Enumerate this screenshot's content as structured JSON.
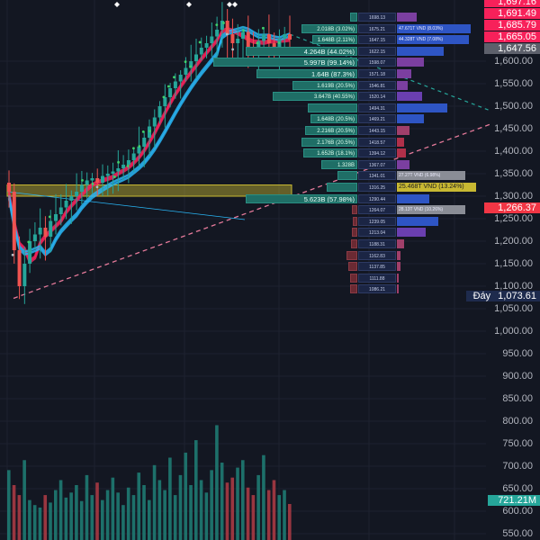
{
  "chart_data": {
    "type": "candlestick",
    "price_axis": {
      "ticks": [
        "1,600.00",
        "1,550.00",
        "1,500.00",
        "1,450.00",
        "1,400.00",
        "1,350.00",
        "1,300.00",
        "1,250.00",
        "1,200.00",
        "1,150.00",
        "1,100.00",
        "1,050.00",
        "1,000.00",
        "950.00",
        "900.00",
        "850.00",
        "800.00",
        "750.00",
        "700.00",
        "650.00",
        "600.00",
        "550.00"
      ],
      "tick_values": [
        1600,
        1550,
        1500,
        1450,
        1400,
        1350,
        1300,
        1250,
        1200,
        1150,
        1100,
        1050,
        1000,
        950,
        900,
        850,
        800,
        750,
        700,
        650,
        600,
        550
      ],
      "range": [
        530,
        1730
      ]
    },
    "price_tags": [
      {
        "label": "1,697.16",
        "style": "pink"
      },
      {
        "label": "1,691.49",
        "style": "pink"
      },
      {
        "label": "1,685.79",
        "style": "pink"
      },
      {
        "label": "1,665.05",
        "style": "pink"
      },
      {
        "label": "1,647.56",
        "style": "grey"
      },
      {
        "label": "1,266.37",
        "style": "red",
        "value": 1266.37
      },
      {
        "prefix": "Đáy",
        "label": "1,073.61",
        "style": "navy",
        "value": 1073.61
      }
    ],
    "closes": [
      1310,
      1180,
      1100,
      1150,
      1200,
      1215,
      1230,
      1210,
      1245,
      1260,
      1275,
      1290,
      1300,
      1310,
      1325,
      1335,
      1340,
      1330,
      1345,
      1350,
      1355,
      1362,
      1370,
      1380,
      1395,
      1410,
      1430,
      1455,
      1475,
      1500,
      1520,
      1540,
      1555,
      1570,
      1585,
      1600,
      1615,
      1630,
      1640,
      1655,
      1670,
      1690,
      1660,
      1640,
      1650,
      1665,
      1630,
      1620,
      1645,
      1660,
      1640,
      1625,
      1650,
      1660,
      1648
    ],
    "volume_label": "721.21M",
    "volume_m": [
      1400,
      1100,
      900,
      1600,
      800,
      700,
      650,
      900,
      750,
      1000,
      1200,
      850,
      950,
      1100,
      780,
      1300,
      900,
      1150,
      800,
      1000,
      1250,
      950,
      700,
      1050,
      900,
      1350,
      1100,
      800,
      1500,
      1200,
      1000,
      1650,
      900,
      1300,
      1750,
      1100,
      2000,
      1200,
      950,
      1400,
      2300,
      1550,
      1150,
      1250,
      1450,
      1600,
      1050,
      900,
      1300,
      1700,
      1000,
      1200,
      900,
      1000,
      721.21
    ],
    "ma_fast_color": "#f7215a",
    "ma_slow_color": "#29b6f6",
    "support_zone": [
      1300,
      1325
    ],
    "support_zone_color": "#c8b832",
    "volume_profile": [
      {
        "price": "1698.13",
        "left": "",
        "lw": 8,
        "right": "",
        "rw": 22,
        "rc": "#7b3fa0"
      },
      {
        "price": "1675.21",
        "left": "2.018B (3.02%)",
        "lw": 62,
        "right": "47.671T VND (8.03%)",
        "rw": 82,
        "rc": "#2e55c4"
      },
      {
        "price": "1647.15",
        "left": "1.648B (2.11%)",
        "lw": 50,
        "right": "44.328T VND (7.08%)",
        "rw": 80,
        "rc": "#2e55c4"
      },
      {
        "price": "1622.15",
        "left": "4.264B (44.02%)",
        "lw": 124,
        "big": true,
        "right": "",
        "rw": 52,
        "rc": "#2e55c4"
      },
      {
        "price": "1598.07",
        "left": "5.997B (99.14%)",
        "lw": 160,
        "big": true,
        "right": "",
        "rw": 30,
        "rc": "#7b3fa0"
      },
      {
        "price": "1571.18",
        "left": "1.64B (87.3%)",
        "lw": 112,
        "big": true,
        "right": "",
        "rw": 16,
        "rc": "#7b3fa0"
      },
      {
        "price": "1546.81",
        "left": "1.619B (20.5%)",
        "lw": 72,
        "right": "",
        "rw": 12,
        "rc": "#7b3fa0"
      },
      {
        "price": "1520.14",
        "left": "3.647B (40.55%)",
        "lw": 94,
        "right": "",
        "rw": 28,
        "rc": "#6a3fb0"
      },
      {
        "price": "1494.31",
        "left": "",
        "lw": 55,
        "right": "",
        "rw": 56,
        "rc": "#2e55c4"
      },
      {
        "price": "1469.21",
        "left": "1.648B (20.5%)",
        "lw": 52,
        "right": "",
        "rw": 30,
        "rc": "#2e55c4"
      },
      {
        "price": "1443.15",
        "left": "2.216B (20.5%)",
        "lw": 58,
        "right": "",
        "rw": 14,
        "rc": "#a03f6a"
      },
      {
        "price": "1418.57",
        "left": "2.176B (20.5%)",
        "lw": 62,
        "right": "",
        "rw": 8,
        "rc": "#b0304a"
      },
      {
        "price": "1394.12",
        "left": "1.652B (18.1%)",
        "lw": 60,
        "right": "",
        "rw": 10,
        "rc": "#b0304a"
      },
      {
        "price": "1367.07",
        "left": "1.328B",
        "lw": 40,
        "right": "",
        "rw": 14,
        "rc": "#7b3fa0"
      },
      {
        "price": "1341.01",
        "left": "",
        "lw": 22,
        "right": "27.27T VND (6.98%)",
        "rw": 76,
        "rc": "#8a8d96"
      },
      {
        "price": "1316.25",
        "left": "",
        "lw": 34,
        "right": "25.468T VND (13.24%)",
        "rw": 88,
        "big": true,
        "rc": "#c8b832"
      },
      {
        "price": "1290.44",
        "left": "5.623B (57.98%)",
        "lw": 124,
        "big": true,
        "right": "",
        "rw": 36,
        "rc": "#2e55c4"
      },
      {
        "price": "1264.07",
        "left": "",
        "lw": 6,
        "right": "28.13T VND (10.26%)",
        "rw": 76,
        "rc": "#8a8d96"
      },
      {
        "price": "1239.05",
        "left": "",
        "lw": 5,
        "right": "",
        "rw": 46,
        "rc": "#2e55c4"
      },
      {
        "price": "1213.04",
        "left": "",
        "lw": 6,
        "right": "",
        "rw": 32,
        "rc": "#6a3fb0"
      },
      {
        "price": "1188.31",
        "left": "",
        "lw": 7,
        "right": "",
        "rw": 8,
        "rc": "#a03f6a"
      },
      {
        "price": "1162.83",
        "left": "",
        "lw": 12,
        "right": "",
        "rw": 4,
        "rc": "#a03f6a"
      },
      {
        "price": "1137.85",
        "left": "",
        "lw": 10,
        "right": "",
        "rw": 4,
        "rc": "#a03f6a"
      },
      {
        "price": "1111.88",
        "left": "",
        "lw": 8,
        "right": "",
        "rw": 0,
        "rc": "#a03f6a"
      },
      {
        "price": "1086.21",
        "left": "",
        "lw": 8,
        "right": "",
        "rw": 0,
        "rc": "#a03f6a"
      }
    ]
  }
}
